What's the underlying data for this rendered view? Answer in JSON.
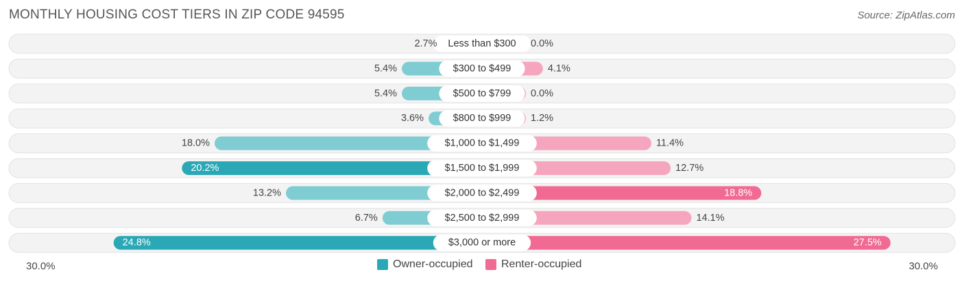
{
  "title": "MONTHLY HOUSING COST TIERS IN ZIP CODE 94595",
  "source": "Source: ZipAtlas.com",
  "axis": {
    "left_label": "30.0%",
    "right_label": "30.0%"
  },
  "legend": {
    "owner": "Owner-occupied",
    "renter": "Renter-occupied"
  },
  "colors": {
    "owner_light": "#7fcdd2",
    "owner_dark": "#2ba8b5",
    "renter_light": "#f5a6be",
    "renter_dark": "#f06a93",
    "row_bg": "#eeeeee"
  },
  "chart_data": {
    "type": "bar",
    "orientation": "diverging-horizontal",
    "xlim": [
      0,
      30
    ],
    "categories": [
      "Less than $300",
      "$300 to $499",
      "$500 to $799",
      "$800 to $999",
      "$1,000 to $1,499",
      "$1,500 to $1,999",
      "$2,000 to $2,499",
      "$2,500 to $2,999",
      "$3,000 or more"
    ],
    "series": [
      {
        "name": "Owner-occupied",
        "values": [
          2.7,
          5.4,
          5.4,
          3.6,
          18.0,
          20.2,
          13.2,
          6.7,
          24.8
        ],
        "labels": [
          "2.7%",
          "5.4%",
          "5.4%",
          "3.6%",
          "18.0%",
          "20.2%",
          "13.2%",
          "6.7%",
          "24.8%"
        ]
      },
      {
        "name": "Renter-occupied",
        "values": [
          0.0,
          4.1,
          0.0,
          1.2,
          11.4,
          12.7,
          18.8,
          14.1,
          27.5
        ],
        "labels": [
          "0.0%",
          "4.1%",
          "0.0%",
          "1.2%",
          "11.4%",
          "12.7%",
          "18.8%",
          "14.1%",
          "27.5%"
        ]
      }
    ]
  }
}
